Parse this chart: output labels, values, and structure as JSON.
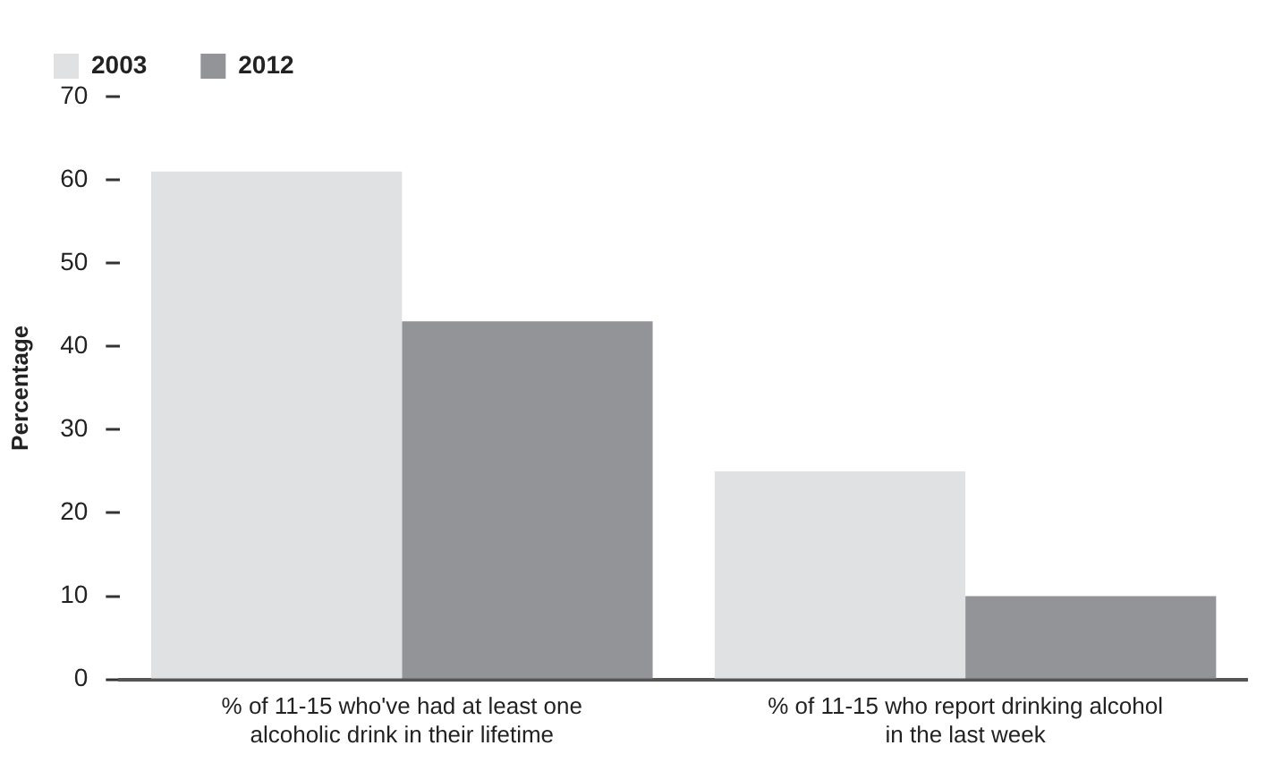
{
  "chart_data": {
    "type": "bar",
    "ylabel": "Percentage",
    "categories": [
      "% of 11-15 who've had at least one alcoholic drink in their lifetime",
      "% of 11-15 who report drinking alcohol in the last week"
    ],
    "series": [
      {
        "name": "2003",
        "color": "#e0e1e3",
        "values": [
          61,
          25
        ]
      },
      {
        "name": "2012",
        "color": "#939497",
        "values": [
          43,
          10
        ]
      }
    ],
    "ylim": [
      0,
      70
    ],
    "yticks": [
      0,
      10,
      20,
      30,
      40,
      50,
      60,
      70
    ],
    "grid": false,
    "legend": "top left"
  }
}
